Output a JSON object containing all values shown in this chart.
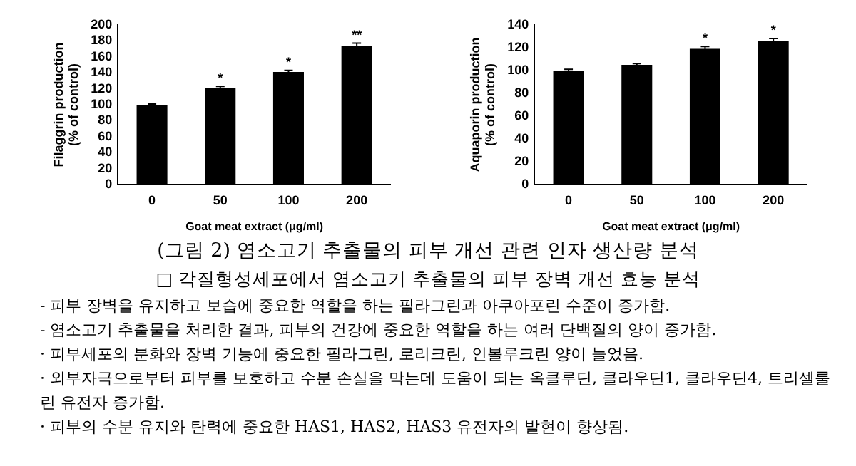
{
  "chart_data": [
    {
      "type": "bar",
      "xlabel": "Goat meat extract (μg/ml)",
      "ylabel": "Filaggrin production\n(% of control)",
      "categories": [
        "0",
        "50",
        "100",
        "200"
      ],
      "values": [
        100,
        121,
        141,
        174
      ],
      "errors": [
        1,
        2,
        2,
        3
      ],
      "color": "#000000",
      "ylim": [
        0,
        200
      ],
      "yticks": [
        0,
        20,
        40,
        60,
        80,
        100,
        120,
        140,
        160,
        180,
        200
      ],
      "annotations": [
        {
          "text": "*",
          "x": "50",
          "y": 121
        },
        {
          "text": "*",
          "x": "100",
          "y": 141
        },
        {
          "text": "**",
          "x": "200",
          "y": 174
        }
      ]
    },
    {
      "type": "bar",
      "xlabel": "Goat meat extract (μg/ml)",
      "ylabel": "Aquaporin production\n(% of control)",
      "categories": [
        "0",
        "50",
        "100",
        "200"
      ],
      "values": [
        100,
        105,
        119,
        126
      ],
      "errors": [
        1,
        1,
        2,
        2
      ],
      "color": "#000000",
      "ylim": [
        0,
        140
      ],
      "yticks": [
        0,
        20,
        40,
        60,
        80,
        100,
        120,
        140
      ],
      "annotations": [
        {
          "text": "*",
          "x": "100",
          "y": 119
        },
        {
          "text": "*",
          "x": "200",
          "y": 126
        }
      ]
    },
    {
      "type": "other",
      "title": "(그림 2) 염소고기 추출물의 피부 개선 관련 인자 생산량 분석",
      "subtitle": "□ 각질형성세포에서 염소고기 추출물의 피부 장벽 개선 효능 분석",
      "annotations": [
        "- 피부 장벽을 유지하고 보습에 중요한 역할을 하는 필라그린과 아쿠아포린 수준이 증가함.",
        "- 염소고기 추출물을 처리한 결과, 피부의 건강에 중요한 역할을 하는 여러 단백질의 양이 증가함.",
        "· 피부세포의 분화와 장벽 기능에 중요한 필라그린, 로리크린, 인볼루크린 양이 늘었음.",
        "· 외부자극으로부터 피부를 보호하고 수분 손실을 막는데 도움이 되는 옥클루딘, 클라우딘1, 클라우딘4, 트리셀룰린 유전자 증가함.",
        "· 피부의 수분 유지와 탄력에 중요한 HAS1, HAS2, HAS3 유전자의 발현이 향상됨."
      ]
    }
  ]
}
